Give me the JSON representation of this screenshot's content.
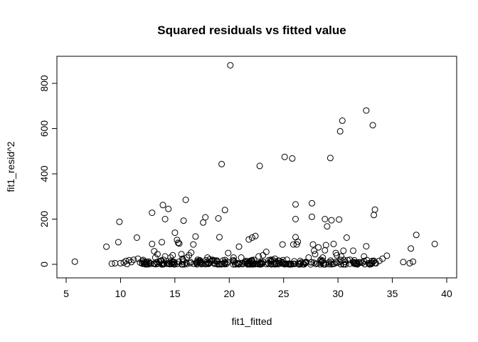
{
  "chart_data": {
    "type": "scatter",
    "title": "Squared residuals vs fitted value",
    "xlabel": "fit1_fitted",
    "ylabel": "fit1_resid^2",
    "xlim": [
      5,
      40
    ],
    "ylim": [
      0,
      900
    ],
    "xticks": [
      5,
      10,
      15,
      20,
      25,
      30,
      35,
      40
    ],
    "xtick_labels": [
      "5",
      "10",
      "15",
      "20",
      "25",
      "30",
      "35",
      "40"
    ],
    "yticks": [
      0,
      200,
      400,
      600,
      800
    ],
    "ytick_labels": [
      "0",
      "200",
      "400",
      "600",
      "800"
    ],
    "grid": false,
    "legend": "none",
    "point_style": "open-circle",
    "series": [
      {
        "points": [
          [
            5.8,
            12
          ],
          [
            8.7,
            78
          ],
          [
            9.2,
            3
          ],
          [
            9.5,
            5
          ],
          [
            9.8,
            98
          ],
          [
            9.9,
            188
          ],
          [
            10.0,
            5
          ],
          [
            10.3,
            8
          ],
          [
            10.5,
            15
          ],
          [
            10.6,
            2
          ],
          [
            10.8,
            18
          ],
          [
            11.0,
            10
          ],
          [
            11.2,
            20
          ],
          [
            11.5,
            118
          ],
          [
            11.6,
            25
          ],
          [
            11.8,
            8
          ],
          [
            12.0,
            15
          ],
          [
            12.2,
            5
          ],
          [
            12.4,
            2
          ],
          [
            12.6,
            12
          ],
          [
            12.9,
            228
          ],
          [
            12.9,
            90
          ],
          [
            13.1,
            58
          ],
          [
            13.2,
            30
          ],
          [
            13.4,
            45
          ],
          [
            13.6,
            10
          ],
          [
            13.8,
            98
          ],
          [
            13.9,
            262
          ],
          [
            14.1,
            200
          ],
          [
            14.1,
            35
          ],
          [
            14.4,
            245
          ],
          [
            14.6,
            30
          ],
          [
            14.8,
            40
          ],
          [
            15.0,
            140
          ],
          [
            15.2,
            108
          ],
          [
            15.3,
            95
          ],
          [
            15.4,
            92
          ],
          [
            15.6,
            45
          ],
          [
            15.7,
            25
          ],
          [
            15.8,
            193
          ],
          [
            16.0,
            285
          ],
          [
            16.1,
            30
          ],
          [
            16.3,
            40
          ],
          [
            16.5,
            52
          ],
          [
            16.7,
            88
          ],
          [
            16.9,
            123
          ],
          [
            17.1,
            20
          ],
          [
            17.4,
            10
          ],
          [
            17.6,
            185
          ],
          [
            17.8,
            208
          ],
          [
            18.0,
            30
          ],
          [
            18.2,
            22
          ],
          [
            18.4,
            15
          ],
          [
            18.7,
            5
          ],
          [
            19.0,
            203
          ],
          [
            19.1,
            120
          ],
          [
            19.3,
            443
          ],
          [
            19.6,
            240
          ],
          [
            19.9,
            50
          ],
          [
            20.1,
            880
          ],
          [
            20.4,
            30
          ],
          [
            20.7,
            5
          ],
          [
            20.9,
            78
          ],
          [
            21.1,
            30
          ],
          [
            21.5,
            15
          ],
          [
            21.8,
            110
          ],
          [
            22.1,
            118
          ],
          [
            22.4,
            125
          ],
          [
            22.7,
            35
          ],
          [
            22.8,
            435
          ],
          [
            23.1,
            40
          ],
          [
            23.4,
            55
          ],
          [
            23.8,
            20
          ],
          [
            24.2,
            25
          ],
          [
            24.6,
            15
          ],
          [
            24.9,
            88
          ],
          [
            25.1,
            475
          ],
          [
            25.3,
            20
          ],
          [
            25.8,
            468
          ],
          [
            25.9,
            88
          ],
          [
            26.0,
            2
          ],
          [
            26.1,
            265
          ],
          [
            26.1,
            200
          ],
          [
            26.2,
            88
          ],
          [
            26.1,
            120
          ],
          [
            26.3,
            100
          ],
          [
            26.6,
            8
          ],
          [
            27.0,
            5
          ],
          [
            27.3,
            30
          ],
          [
            27.6,
            270
          ],
          [
            27.6,
            210
          ],
          [
            27.7,
            88
          ],
          [
            27.8,
            60
          ],
          [
            27.9,
            45
          ],
          [
            28.2,
            75
          ],
          [
            28.4,
            20
          ],
          [
            28.6,
            30
          ],
          [
            28.8,
            200
          ],
          [
            28.8,
            62
          ],
          [
            28.9,
            85
          ],
          [
            29.0,
            168
          ],
          [
            29.3,
            470
          ],
          [
            29.4,
            195
          ],
          [
            29.6,
            90
          ],
          [
            29.8,
            50
          ],
          [
            29.9,
            40
          ],
          [
            30.1,
            198
          ],
          [
            30.2,
            588
          ],
          [
            30.3,
            35
          ],
          [
            30.4,
            635
          ],
          [
            30.5,
            60
          ],
          [
            30.8,
            118
          ],
          [
            31.1,
            20
          ],
          [
            31.4,
            60
          ],
          [
            31.8,
            5
          ],
          [
            32.1,
            8
          ],
          [
            32.4,
            35
          ],
          [
            32.6,
            680
          ],
          [
            32.6,
            80
          ],
          [
            32.8,
            5
          ],
          [
            33.2,
            615
          ],
          [
            33.3,
            218
          ],
          [
            33.4,
            242
          ],
          [
            33.5,
            5
          ],
          [
            33.8,
            15
          ],
          [
            34.1,
            25
          ],
          [
            34.5,
            38
          ],
          [
            36.0,
            10
          ],
          [
            36.7,
            70
          ],
          [
            36.6,
            5
          ],
          [
            36.9,
            12
          ],
          [
            37.2,
            130
          ],
          [
            38.9,
            90
          ]
        ]
      }
    ]
  }
}
